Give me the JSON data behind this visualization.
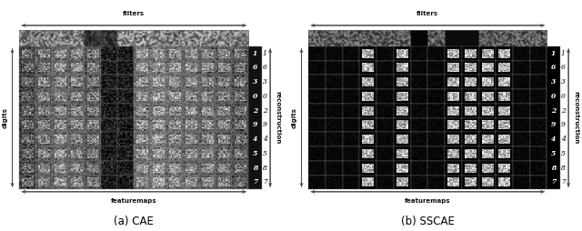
{
  "fig_width": 6.4,
  "fig_height": 2.54,
  "dpi": 100,
  "bg_color": "#ffffff",
  "panel_a_caption": "(a) CAE",
  "panel_b_caption": "(b) SSCAE",
  "top_label": "filters",
  "bottom_label": "featuremaps",
  "left_label": "digits",
  "right_label": "reconstruction",
  "digit_labels": [
    "1",
    "6",
    "3",
    "0",
    "2",
    "9",
    "4",
    "5",
    "8",
    "7"
  ],
  "n_cols": 14,
  "n_rows": 10,
  "text_fontsize": 5.0,
  "caption_fontsize": 8.5,
  "label_color": "#111111",
  "arrow_color": "#444444",
  "cae_col_shades": [
    0.25,
    0.35,
    0.4,
    0.38,
    0.32,
    0.1,
    0.1,
    0.42,
    0.45,
    0.42,
    0.4,
    0.38,
    0.35,
    0.3
  ],
  "sscae_bright_cols": [
    3,
    5,
    8,
    9,
    10,
    11
  ]
}
